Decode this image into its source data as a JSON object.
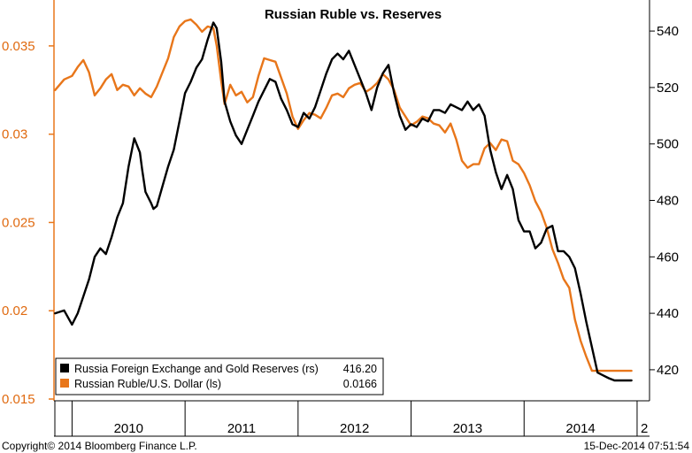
{
  "chart_data": {
    "type": "line",
    "title": "Russian Ruble vs. Reserves",
    "x_tick_labels": [
      "2010",
      "2011",
      "2012",
      "2013",
      "2014",
      "2"
    ],
    "left_axis": {
      "ticks": [
        "0.015",
        "0.02",
        "0.025",
        "0.03",
        "0.035"
      ],
      "ylim": [
        0.0149,
        0.0376
      ]
    },
    "right_axis": {
      "ticks": [
        "420",
        "440",
        "460",
        "480",
        "500",
        "520",
        "540"
      ],
      "ylim": [
        409,
        551
      ]
    },
    "grid": false,
    "legend_position": "bottom-left",
    "series": [
      {
        "name": "Russia Foreign Exchange and Gold Reserves (rs)",
        "last_value": "416.20",
        "axis": "right",
        "color": "#000000",
        "x": [
          2009.85,
          2009.93,
          2010.0,
          2010.05,
          2010.1,
          2010.15,
          2010.2,
          2010.25,
          2010.3,
          2010.35,
          2010.4,
          2010.45,
          2010.5,
          2010.55,
          2010.6,
          2010.62,
          2010.65,
          2010.7,
          2010.72,
          2010.75,
          2010.8,
          2010.85,
          2010.9,
          2010.95,
          2011.0,
          2011.05,
          2011.1,
          2011.15,
          2011.2,
          2011.25,
          2011.28,
          2011.32,
          2011.35,
          2011.4,
          2011.45,
          2011.5,
          2011.55,
          2011.6,
          2011.65,
          2011.7,
          2011.75,
          2011.8,
          2011.85,
          2011.9,
          2011.95,
          2012.0,
          2012.05,
          2012.1,
          2012.15,
          2012.2,
          2012.25,
          2012.3,
          2012.35,
          2012.4,
          2012.45,
          2012.5,
          2012.55,
          2012.6,
          2012.65,
          2012.7,
          2012.75,
          2012.8,
          2012.85,
          2012.9,
          2012.95,
          2013.0,
          2013.05,
          2013.1,
          2013.15,
          2013.2,
          2013.25,
          2013.3,
          2013.35,
          2013.4,
          2013.45,
          2013.5,
          2013.55,
          2013.6,
          2013.65,
          2013.7,
          2013.75,
          2013.8,
          2013.85,
          2013.9,
          2013.95,
          2014.0,
          2014.05,
          2014.1,
          2014.15,
          2014.2,
          2014.25,
          2014.3,
          2014.35,
          2014.4,
          2014.45,
          2014.5,
          2014.55,
          2014.6,
          2014.65,
          2014.7,
          2014.75,
          2014.8,
          2014.85,
          2014.9,
          2014.95
        ],
        "values": [
          440,
          441,
          436,
          440,
          446,
          452,
          460,
          463,
          461,
          467,
          474,
          479,
          492,
          502,
          497,
          491,
          483,
          479,
          477,
          478,
          485,
          492,
          498,
          508,
          518,
          522,
          527,
          530,
          537,
          543,
          541,
          529,
          515,
          508,
          503,
          500,
          505,
          510,
          515,
          519,
          523,
          522,
          516,
          512,
          507,
          506,
          511,
          509,
          513,
          519,
          525,
          530,
          532,
          530,
          533,
          528,
          523,
          518,
          512,
          520,
          525,
          528,
          518,
          510,
          505,
          507,
          506,
          509,
          508,
          512,
          512,
          511,
          514,
          513,
          512,
          515,
          512,
          514,
          510,
          498,
          490,
          484,
          489,
          484,
          473,
          469,
          469,
          463,
          465,
          470,
          471,
          462,
          462,
          460,
          456,
          447,
          437,
          428,
          419,
          418,
          417,
          416.2,
          416.2,
          416.2,
          416.2
        ]
      },
      {
        "name": "Russian Ruble/U.S. Dollar (ls)",
        "last_value": "0.0166",
        "axis": "left",
        "color": "#e8761a",
        "x": [
          2009.85,
          2009.93,
          2010.0,
          2010.05,
          2010.1,
          2010.15,
          2010.2,
          2010.25,
          2010.3,
          2010.35,
          2010.4,
          2010.45,
          2010.5,
          2010.55,
          2010.6,
          2010.65,
          2010.7,
          2010.75,
          2010.8,
          2010.85,
          2010.9,
          2010.95,
          2011.0,
          2011.05,
          2011.1,
          2011.15,
          2011.2,
          2011.25,
          2011.28,
          2011.32,
          2011.35,
          2011.4,
          2011.45,
          2011.5,
          2011.55,
          2011.6,
          2011.65,
          2011.7,
          2011.75,
          2011.8,
          2011.85,
          2011.9,
          2011.95,
          2012.0,
          2012.05,
          2012.1,
          2012.15,
          2012.2,
          2012.25,
          2012.3,
          2012.35,
          2012.4,
          2012.45,
          2012.5,
          2012.55,
          2012.6,
          2012.65,
          2012.7,
          2012.75,
          2012.8,
          2012.85,
          2012.9,
          2012.95,
          2013.0,
          2013.05,
          2013.1,
          2013.15,
          2013.2,
          2013.25,
          2013.3,
          2013.35,
          2013.4,
          2013.45,
          2013.5,
          2013.55,
          2013.6,
          2013.65,
          2013.7,
          2013.75,
          2013.8,
          2013.85,
          2013.9,
          2013.95,
          2014.0,
          2014.05,
          2014.1,
          2014.15,
          2014.2,
          2014.25,
          2014.3,
          2014.35,
          2014.4,
          2014.45,
          2014.5,
          2014.55,
          2014.6,
          2014.65,
          2014.7,
          2014.75,
          2014.8,
          2014.85,
          2014.9,
          2014.95
        ],
        "values": [
          0.0325,
          0.0331,
          0.0333,
          0.0338,
          0.0342,
          0.0335,
          0.0322,
          0.0326,
          0.0331,
          0.0334,
          0.0325,
          0.0328,
          0.0327,
          0.0322,
          0.0326,
          0.0323,
          0.0321,
          0.0327,
          0.0335,
          0.0343,
          0.0355,
          0.0361,
          0.0364,
          0.0365,
          0.0362,
          0.0358,
          0.0361,
          0.036,
          0.035,
          0.033,
          0.0317,
          0.0328,
          0.0322,
          0.0324,
          0.0318,
          0.0321,
          0.0333,
          0.0343,
          0.0342,
          0.0341,
          0.0332,
          0.0323,
          0.031,
          0.0303,
          0.0308,
          0.0312,
          0.0311,
          0.0309,
          0.0315,
          0.0322,
          0.0323,
          0.0321,
          0.0326,
          0.0328,
          0.0329,
          0.0324,
          0.0326,
          0.0329,
          0.0334,
          0.0331,
          0.0325,
          0.0315,
          0.031,
          0.0305,
          0.0307,
          0.031,
          0.0309,
          0.0306,
          0.0305,
          0.0301,
          0.0306,
          0.0297,
          0.0285,
          0.0281,
          0.0283,
          0.0283,
          0.0292,
          0.0295,
          0.0291,
          0.0297,
          0.0296,
          0.0285,
          0.0283,
          0.0278,
          0.0271,
          0.0262,
          0.0256,
          0.0247,
          0.0235,
          0.0227,
          0.0218,
          0.0213,
          0.0195,
          0.0183,
          0.0174,
          0.0166,
          0.0166,
          0.0166,
          0.0166,
          0.0166,
          0.0166,
          0.0166,
          0.0166
        ]
      }
    ]
  },
  "footer": {
    "copyright": "Copyright© 2014 Bloomberg Finance L.P.",
    "timestamp": "15-Dec-2014 07:51:54"
  }
}
